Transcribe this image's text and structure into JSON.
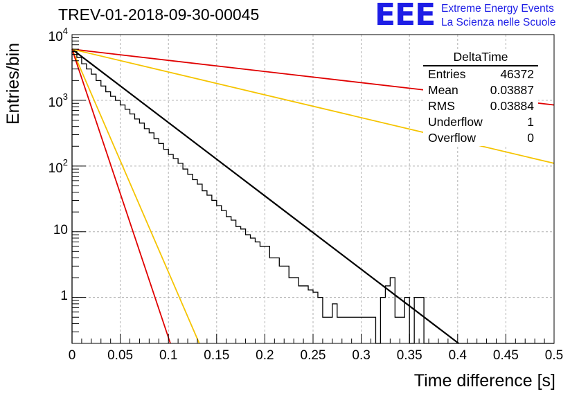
{
  "header": {
    "title": "TREV-01-2018-09-30-00045",
    "logo": "EEE",
    "logo_line1": "Extreme Energy Events",
    "logo_line2": "La Scienza nelle Scuole"
  },
  "stats_box": {
    "name": "DeltaTime",
    "rows": [
      {
        "label": "Entries",
        "value": "46372"
      },
      {
        "label": "Mean",
        "value": "0.03887"
      },
      {
        "label": "RMS",
        "value": "0.03884"
      },
      {
        "label": "Underflow",
        "value": "1"
      },
      {
        "label": "Overflow",
        "value": "0"
      }
    ]
  },
  "chart_data": {
    "type": "line",
    "xlabel": "Time difference [s]",
    "ylabel": "Entries/bin",
    "xlim": [
      0,
      0.5
    ],
    "ylim": [
      0.2,
      10000
    ],
    "yscale": "log",
    "grid": true,
    "x_ticks": [
      "0",
      "0.05",
      "0.1",
      "0.15",
      "0.2",
      "0.25",
      "0.3",
      "0.35",
      "0.4",
      "0.45",
      "0.5"
    ],
    "y_ticks": [
      {
        "value": 1,
        "label": "1"
      },
      {
        "value": 10,
        "label": "10"
      },
      {
        "value": 100,
        "label": "10",
        "exp": "2"
      },
      {
        "value": 1000,
        "label": "10",
        "exp": "3"
      },
      {
        "value": 10000,
        "label": "10",
        "exp": "4"
      }
    ],
    "histogram": {
      "color": "#000000",
      "bin_width": 0.005,
      "counts": [
        5500,
        4500,
        3600,
        3000,
        2500,
        2000,
        1650,
        1350,
        1150,
        1000,
        850,
        730,
        620,
        520,
        450,
        370,
        320,
        260,
        220,
        180,
        150,
        130,
        110,
        90,
        75,
        62,
        53,
        42,
        36,
        30,
        25,
        21,
        17,
        15,
        12,
        11,
        9,
        8,
        7,
        6,
        6,
        4,
        4,
        3,
        3,
        2,
        2,
        1.5,
        1.5,
        1.3,
        1.2,
        1,
        0.5,
        0.5,
        0.8,
        0.5,
        0.5,
        0.5,
        0.5,
        0.5,
        0.5,
        0.5,
        0.5,
        0.2,
        1,
        1.5,
        2,
        0.5,
        0.5,
        1,
        0.2,
        1,
        1,
        0.2,
        0.2,
        0.2,
        0.2,
        0.2,
        0.2,
        0.2,
        0.2,
        0.2,
        0.2,
        0.2,
        0.2,
        0.2,
        0.2,
        0.2,
        0.2,
        0.2,
        0.2,
        0.2,
        0.2,
        0.2,
        0.2,
        0.2,
        0.2,
        0.2,
        0.2,
        0.2
      ]
    },
    "series": [
      {
        "color": "#000000",
        "points": [
          [
            0,
            6000
          ],
          [
            0.401,
            0.2
          ]
        ]
      },
      {
        "color": "#e00000",
        "points": [
          [
            0,
            6000
          ],
          [
            0.5,
            850
          ]
        ]
      },
      {
        "color": "#f5c400",
        "points": [
          [
            0,
            6000
          ],
          [
            0.5,
            110
          ]
        ]
      },
      {
        "color": "#f5c400",
        "points": [
          [
            0,
            6000
          ],
          [
            0.132,
            0.2
          ]
        ]
      },
      {
        "color": "#e00000",
        "points": [
          [
            0,
            6000
          ],
          [
            0.102,
            0.2
          ]
        ]
      }
    ]
  }
}
